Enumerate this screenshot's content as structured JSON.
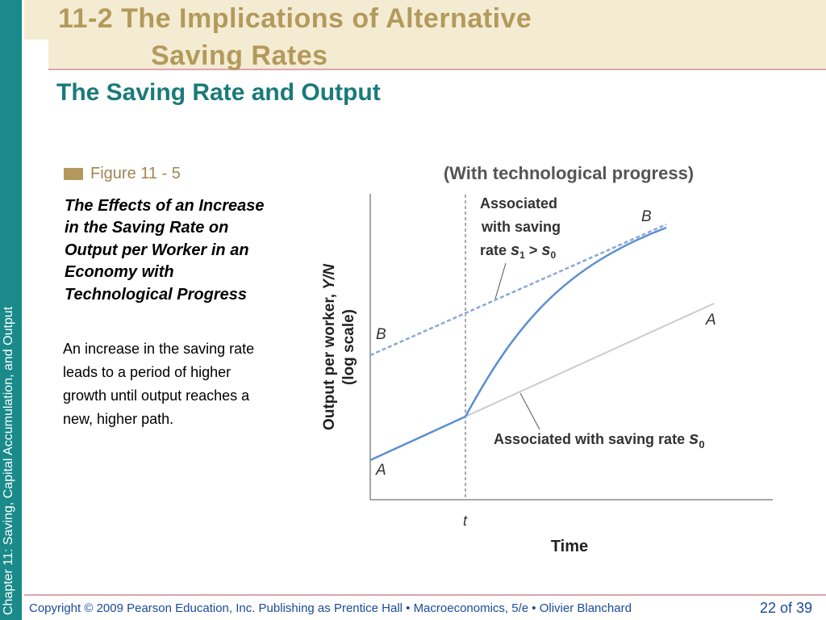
{
  "sidebar": {
    "chapter_text": "Chapter 11:  Saving, Capital Accumulation, and Output"
  },
  "title": {
    "line1": "11-2  The Implications of Alternative",
    "line2": "Saving Rates"
  },
  "subtitle": "The Saving Rate and Output",
  "figure": {
    "label": "Figure 11 - 5",
    "caption_title": "The Effects of an Increase in the Saving Rate on Output per Worker in an Economy with Technological Progress",
    "caption_body": "An increase in the saving rate leads to a period of higher growth until output reaches a new, higher path."
  },
  "diagram": {
    "heading": "(With technological progress)",
    "y_axis_label_main": "Output per worker, ",
    "y_axis_label_var": "Y/N",
    "y_axis_label_sub": "(log scale)",
    "x_axis_label": "Time",
    "time_marker": "t",
    "label_A_left": "A",
    "label_A_right": "A",
    "label_B_left": "B",
    "label_B_right": "B",
    "annot_top_line1": "Associated",
    "annot_top_line2": "with saving",
    "annot_top_line3_prefix": "rate ",
    "annot_top_s": "s",
    "annot_top_sub1": "1",
    "annot_top_gt": " > ",
    "annot_top_sub0": "0",
    "annot_bottom_prefix": "Associated with saving rate ",
    "annot_bottom_s": "s",
    "annot_bottom_sub": "0",
    "colors": {
      "path_line": "#5b8fd0",
      "dashed_line": "#8aa9d6",
      "faint_line": "#c9ccd2",
      "axis": "#8a8a8a"
    }
  },
  "footer": {
    "copyright": "Copyright © 2009 Pearson Education, Inc. Publishing as Prentice Hall  •  Macroeconomics, 5/e  •  Olivier Blanchard",
    "page": "22 of 39"
  }
}
